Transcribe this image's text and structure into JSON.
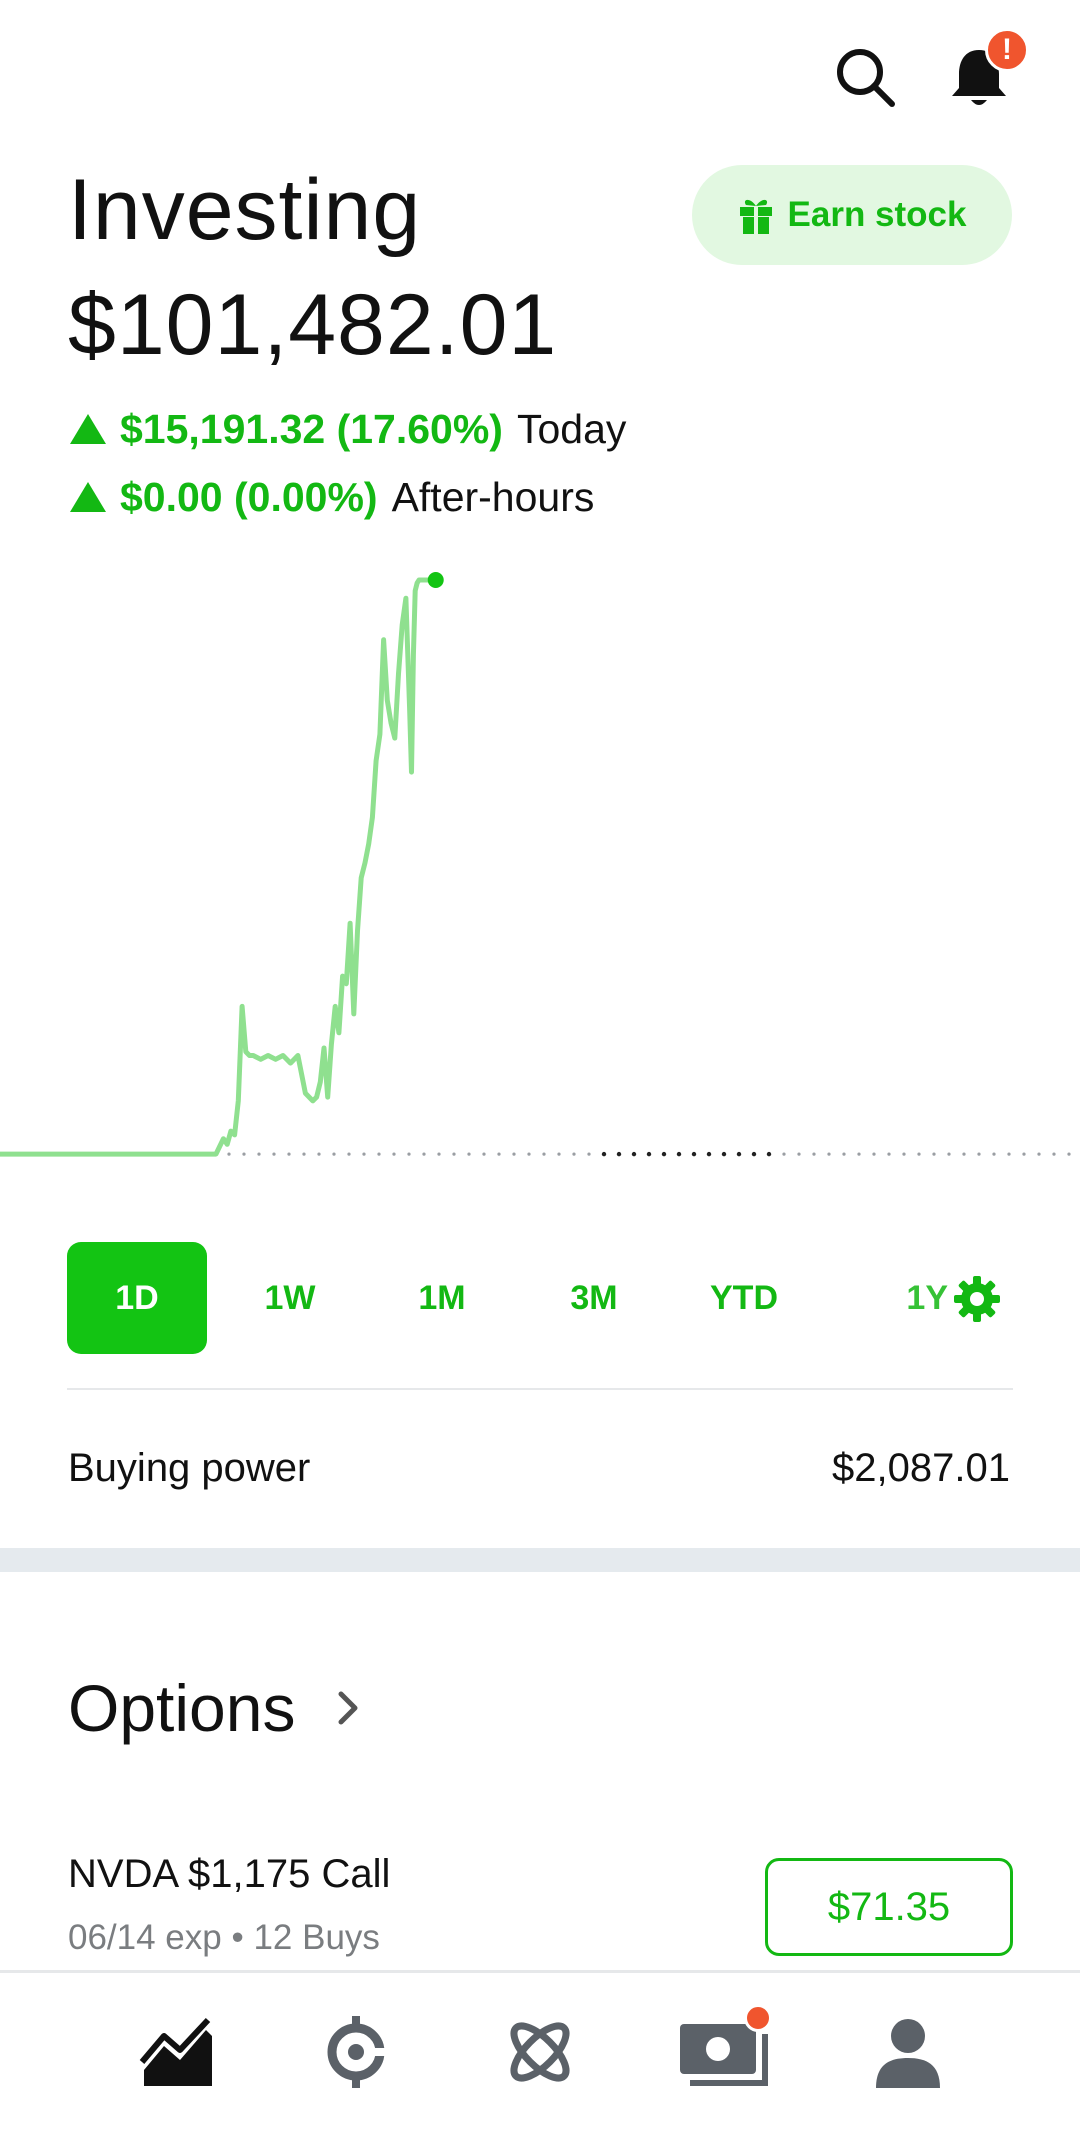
{
  "header": {
    "title": "Investing",
    "portfolio_value": "$101,482.01",
    "notification_badge": "!",
    "earn_stock_label": "Earn stock"
  },
  "changes": {
    "today": {
      "amount": "$15,191.32 (17.60%)",
      "label": "Today"
    },
    "after_hours": {
      "amount": "$0.00 (0.00%)",
      "label": "After-hours"
    }
  },
  "chart_data": {
    "type": "line",
    "title": "",
    "xlabel": "",
    "ylabel": "",
    "baseline": 86290.69,
    "color": "#8fe08f",
    "endpoint_color": "#13c413",
    "x": [
      0,
      20,
      40,
      58,
      60,
      61,
      62,
      63,
      64,
      65,
      66,
      67,
      68,
      70,
      72,
      74,
      76,
      78,
      80,
      82,
      84,
      85,
      86,
      87,
      88,
      89,
      90,
      91,
      92,
      93,
      94,
      95,
      96,
      97,
      98,
      99,
      100,
      101,
      102,
      103,
      104,
      105,
      106,
      107,
      108,
      109,
      110,
      110.5,
      111,
      111.5,
      112,
      112.5,
      113,
      113.5,
      114,
      114.5,
      115,
      115.5,
      116,
      116.5,
      117
    ],
    "y": [
      86290.69,
      86290.69,
      86290.69,
      86290.69,
      86700,
      86550,
      86900,
      86800,
      87700,
      90200,
      89000,
      88900,
      88900,
      88800,
      88900,
      88800,
      88900,
      88700,
      88900,
      87900,
      87700,
      87800,
      88200,
      89100,
      87800,
      89200,
      90200,
      89500,
      91000,
      90800,
      92400,
      90000,
      92200,
      93600,
      94000,
      94500,
      95200,
      96700,
      97400,
      99900,
      98300,
      97700,
      97300,
      99000,
      100300,
      101000,
      98000,
      96400,
      99500,
      101200,
      101400,
      101482.01,
      101482.01,
      101482.01,
      101482.01,
      101482.01,
      101482.01,
      101482.01,
      101482.01,
      101482.01,
      101482.01
    ],
    "ylim": [
      85500,
      101800
    ],
    "xlim": [
      0,
      290
    ],
    "reference_line": "previous close (dotted)"
  },
  "ranges": {
    "tabs": [
      "1D",
      "1W",
      "1M",
      "3M",
      "YTD",
      "1Y"
    ],
    "selected": "1D"
  },
  "buying_power": {
    "label": "Buying power",
    "value": "$2,087.01"
  },
  "options": {
    "title": "Options",
    "items": [
      {
        "name": "NVDA $1,175 Call",
        "subtitle": "06/14 exp • 12 Buys",
        "price": "$71.35"
      }
    ]
  },
  "nav": {
    "items": [
      "investing-icon",
      "crypto-icon",
      "explore-icon",
      "cash-icon",
      "account-icon"
    ]
  },
  "colors": {
    "accent": "#13c413",
    "accent_text": "#13b813",
    "badge": "#f0552e"
  }
}
